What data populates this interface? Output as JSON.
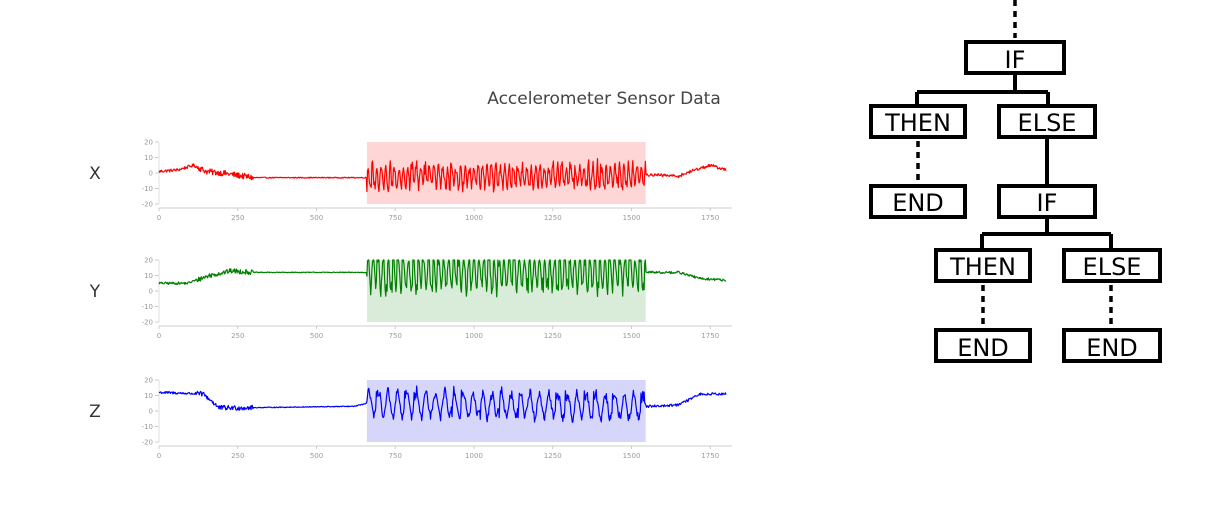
{
  "chart_data": {
    "type": "line",
    "title": "Accelerometer Sensor Data",
    "xlim": [
      0,
      1800
    ],
    "ylim": [
      -20,
      20
    ],
    "x_ticks": [
      0,
      250,
      500,
      750,
      1000,
      1250,
      1500,
      1750
    ],
    "y_ticks": [
      20,
      10,
      0,
      -10,
      -20
    ],
    "highlight_range": [
      660,
      1545
    ],
    "grid": false,
    "series": [
      {
        "name": "X",
        "color": "#ff0000",
        "shade_color": "#ffd6d6",
        "baseline": [
          [
            0,
            1
          ],
          [
            60,
            2
          ],
          [
            110,
            5
          ],
          [
            150,
            1
          ],
          [
            200,
            0
          ],
          [
            300,
            -3
          ],
          [
            650,
            -3
          ],
          [
            1550,
            -1
          ],
          [
            1650,
            -2
          ],
          [
            1700,
            2
          ],
          [
            1750,
            5
          ],
          [
            1800,
            2
          ]
        ],
        "pre_noise": 1.2,
        "active_amp": 8,
        "active_noise": 2.5,
        "spike_period": 14
      },
      {
        "name": "Y",
        "color": "#008000",
        "shade_color": "#d9ecd9",
        "baseline": [
          [
            0,
            5
          ],
          [
            90,
            5
          ],
          [
            160,
            10
          ],
          [
            230,
            13
          ],
          [
            300,
            12
          ],
          [
            650,
            12
          ],
          [
            1550,
            12
          ],
          [
            1650,
            12
          ],
          [
            1720,
            8
          ],
          [
            1800,
            7
          ]
        ],
        "pre_noise": 1.0,
        "active_amp": 12,
        "active_noise": 2.5,
        "spike_period": 16
      },
      {
        "name": "Z",
        "color": "#0000ff",
        "shade_color": "#d6d6fb",
        "baseline": [
          [
            0,
            12
          ],
          [
            140,
            11
          ],
          [
            170,
            6
          ],
          [
            190,
            2
          ],
          [
            230,
            2
          ],
          [
            620,
            3
          ],
          [
            660,
            5
          ],
          [
            1550,
            3
          ],
          [
            1650,
            4
          ],
          [
            1690,
            8
          ],
          [
            1720,
            11
          ],
          [
            1800,
            11
          ]
        ],
        "pre_noise": 1.0,
        "active_amp": 9,
        "active_noise": 1.5,
        "spike_period": 30
      }
    ]
  },
  "tree": {
    "if_top": "IF",
    "then_left": "THEN",
    "else_left": "ELSE",
    "end_left": "END",
    "if_mid": "IF",
    "then_right": "THEN",
    "else_right": "ELSE",
    "end_mid": "END",
    "end_right": "END"
  }
}
